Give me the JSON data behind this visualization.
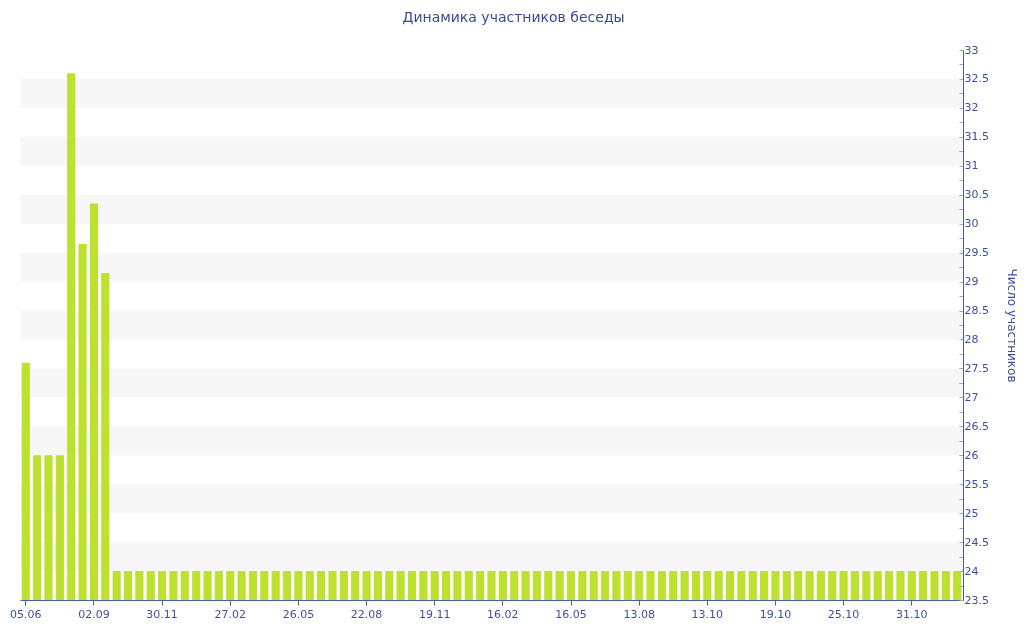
{
  "chart_data": {
    "type": "bar",
    "title": "Динамика участников беседы",
    "ylabel": "Число участников",
    "categories": [
      "05.06",
      null,
      null,
      null,
      null,
      null,
      "02.09",
      null,
      null,
      null,
      null,
      null,
      "30.11",
      null,
      null,
      null,
      null,
      null,
      "27.02",
      null,
      null,
      null,
      null,
      null,
      "26.05",
      null,
      null,
      null,
      null,
      null,
      "22.08",
      null,
      null,
      null,
      null,
      null,
      "19.11",
      null,
      null,
      null,
      null,
      null,
      "16.02",
      null,
      null,
      null,
      null,
      null,
      "16.05",
      null,
      null,
      null,
      null,
      null,
      "13.08",
      null,
      null,
      null,
      null,
      null,
      "13.10",
      null,
      null,
      null,
      null,
      null,
      "19.10",
      null,
      null,
      null,
      null,
      null,
      "25.10",
      null,
      null,
      null,
      null,
      null,
      "31.10",
      null,
      null,
      null,
      null
    ],
    "values": [
      27.6,
      26,
      26,
      26,
      32.6,
      29.65,
      30.35,
      29.15,
      24,
      24,
      24,
      24,
      24,
      24,
      24,
      24,
      24,
      24,
      24,
      24,
      24,
      24,
      24,
      24,
      24,
      24,
      24,
      24,
      24,
      24,
      24,
      24,
      24,
      24,
      24,
      24,
      24,
      24,
      24,
      24,
      24,
      24,
      24,
      24,
      24,
      24,
      24,
      24,
      24,
      24,
      24,
      24,
      24,
      24,
      24,
      24,
      24,
      24,
      24,
      24,
      24,
      24,
      24,
      24,
      24,
      24,
      24,
      24,
      24,
      24,
      24,
      24,
      24,
      24,
      24,
      24,
      24,
      24,
      24,
      24,
      24,
      24,
      24
    ],
    "color": "#bce12f",
    "ylim": [
      23.5,
      33
    ],
    "yticks": [
      23.5,
      {
        "value": 23.75,
        "label": null
      },
      24,
      {
        "value": 24.25,
        "label": null
      },
      24.5,
      {
        "value": 24.75,
        "label": null
      },
      25,
      {
        "value": 25.25,
        "label": null
      },
      25.5,
      {
        "value": 25.75,
        "label": null
      },
      26,
      {
        "value": 26.25,
        "label": null
      },
      26.5,
      {
        "value": 26.75,
        "label": null
      },
      27,
      {
        "value": 27.25,
        "label": null
      },
      27.5,
      {
        "value": 27.75,
        "label": null
      },
      28,
      {
        "value": 28.25,
        "label": null
      },
      28.5,
      {
        "value": 28.75,
        "label": null
      },
      29,
      {
        "value": 29.25,
        "label": null
      },
      29.5,
      {
        "value": 29.75,
        "label": null
      },
      30,
      {
        "value": 30.25,
        "label": null
      },
      30.5,
      {
        "value": 30.75,
        "label": null
      },
      31,
      {
        "value": 31.25,
        "label": null
      },
      31.5,
      {
        "value": 31.75,
        "label": null
      },
      32,
      {
        "value": 32.25,
        "label": null
      },
      32.5,
      {
        "value": 32.75,
        "label": null
      },
      33
    ],
    "bands": [
      {
        "axis": "y",
        "from": 24,
        "to": 24.5,
        "color": "#f7f7f7"
      },
      {
        "axis": "y",
        "from": 25,
        "to": 25.5,
        "color": "#f7f7f7"
      },
      {
        "axis": "y",
        "from": 26,
        "to": 26.5,
        "color": "#f7f7f7"
      },
      {
        "axis": "y",
        "from": 27,
        "to": 27.5,
        "color": "#f7f7f7"
      },
      {
        "axis": "y",
        "from": 28,
        "to": 28.5,
        "color": "#f7f7f7"
      },
      {
        "axis": "y",
        "from": 29,
        "to": 29.5,
        "color": "#f7f7f7"
      },
      {
        "axis": "y",
        "from": 30,
        "to": 30.5,
        "color": "#f7f7f7"
      },
      {
        "axis": "y",
        "from": 31,
        "to": 31.5,
        "color": "#f7f7f7"
      },
      {
        "axis": "y",
        "from": 32,
        "to": 32.5,
        "color": "#f7f7f7"
      }
    ]
  }
}
